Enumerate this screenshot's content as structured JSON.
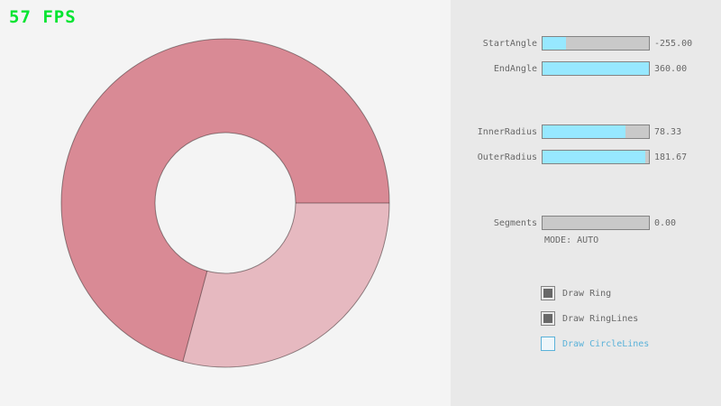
{
  "fps": {
    "label": "57 FPS",
    "color": "#00e430"
  },
  "ring": {
    "start_angle": -255.0,
    "end_angle": 360.0,
    "inner_radius": 78.33,
    "outer_radius": 181.67,
    "segments": 0.0,
    "colors": {
      "overlap": "#d98a95",
      "single": "#e6b9c0",
      "outline_opacity": "0.4"
    }
  },
  "panel": {
    "colors": {
      "background": "#e9e9e9",
      "slider_fill": "#97e8ff",
      "slider_track": "#c9c9c9",
      "border": "#838383",
      "text": "#686868",
      "focused_blue": "#5bb2d9"
    },
    "sliders": [
      {
        "label": "StartAngle",
        "value": "-255.00",
        "fill_pct": 21.7
      },
      {
        "label": "EndAngle",
        "value": "360.00",
        "fill_pct": 100
      },
      {
        "label": "InnerRadius",
        "value": "78.33",
        "fill_pct": 78.3
      },
      {
        "label": "OuterRadius",
        "value": "181.67",
        "fill_pct": 97
      },
      {
        "label": "Segments",
        "value": "0.00",
        "fill_pct": 0
      }
    ],
    "mode_text": "MODE: AUTO",
    "checkboxes": [
      {
        "label": "Draw Ring",
        "checked": true
      },
      {
        "label": "Draw RingLines",
        "checked": true
      },
      {
        "label": "Draw CircleLines",
        "checked": false
      }
    ]
  }
}
